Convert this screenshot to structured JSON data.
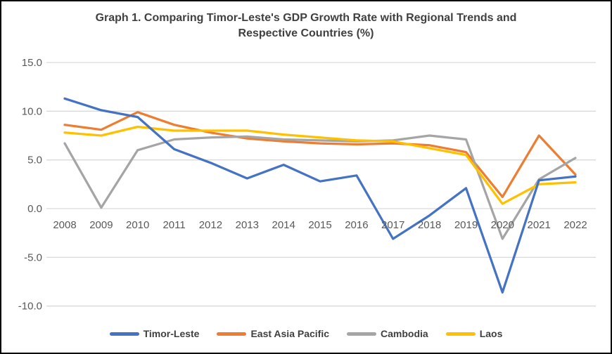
{
  "title": {
    "line1": "Graph 1. Comparing Timor-Leste's GDP Growth Rate with Regional Trends and",
    "line2": "Respective Countries (%)"
  },
  "chart_data": {
    "type": "line",
    "title": "Graph 1. Comparing Timor-Leste's GDP Growth Rate with Regional Trends and Respective Countries (%)",
    "categories": [
      "2008",
      "2009",
      "2010",
      "2011",
      "2012",
      "2013",
      "2014",
      "2015",
      "2016",
      "2017",
      "2018",
      "2019",
      "2020",
      "2021",
      "2022"
    ],
    "series": [
      {
        "name": "Timor-Leste",
        "color": "#4472C4",
        "values": [
          11.3,
          10.1,
          9.4,
          6.1,
          4.7,
          3.1,
          4.5,
          2.8,
          3.4,
          -3.1,
          -0.7,
          2.1,
          -8.6,
          2.9,
          3.3
        ]
      },
      {
        "name": "East Asia Pacific",
        "color": "#ED7D31",
        "values": [
          8.6,
          8.1,
          9.9,
          8.6,
          7.8,
          7.2,
          6.9,
          6.7,
          6.6,
          6.7,
          6.5,
          5.8,
          1.2,
          7.5,
          3.5
        ]
      },
      {
        "name": "Cambodia",
        "color": "#A5A5A5",
        "values": [
          6.7,
          0.1,
          6.0,
          7.1,
          7.3,
          7.4,
          7.1,
          7.0,
          6.9,
          7.0,
          7.5,
          7.1,
          -3.1,
          3.0,
          5.2
        ]
      },
      {
        "name": "Laos",
        "color": "#FFC000",
        "values": [
          7.8,
          7.5,
          8.4,
          8.0,
          8.0,
          8.0,
          7.6,
          7.3,
          7.0,
          6.9,
          6.2,
          5.5,
          0.5,
          2.5,
          2.7
        ]
      }
    ],
    "ylim": [
      -10.0,
      15.0
    ],
    "ytick_step": 5,
    "ytick_values": [
      15,
      10,
      5,
      0,
      -5,
      -10
    ],
    "ytick_labels": [
      "15.0",
      "10.0",
      "5.0",
      "0.0",
      "-5.0",
      "-10.0"
    ],
    "grid": "horizontal",
    "gridline_color": "#D9D9D9",
    "axis_label_color": "#595959",
    "title_color": "#404040",
    "legend_position": "bottom",
    "xlabel": "",
    "ylabel": ""
  }
}
